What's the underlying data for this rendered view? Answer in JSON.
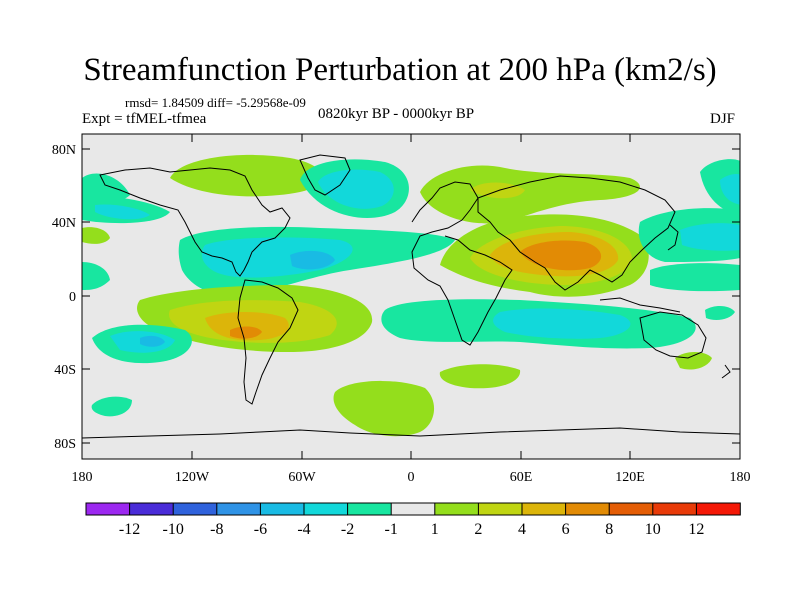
{
  "figure": {
    "title": "Streamfunction Perturbation at 200 hPa (km2/s)",
    "stats": "rmsd= 1.84509 diff= -5.29568e-09",
    "experiment": "Expt = tfMEL-tfmea",
    "period": "0820kyr BP - 0000kyr BP",
    "season": "DJF"
  },
  "axes": {
    "lat_labels": [
      "80N",
      "40N",
      "0",
      "40S",
      "80S"
    ],
    "lon_labels": [
      "180",
      "120W",
      "60W",
      "0",
      "60E",
      "120E",
      "180"
    ]
  },
  "colorbar": {
    "labels": [
      "-12",
      "-10",
      "-8",
      "-6",
      "-4",
      "-2",
      "-1",
      "1",
      "2",
      "4",
      "6",
      "8",
      "10",
      "12"
    ],
    "colors": [
      "#9c28f0",
      "#4a2cd8",
      "#2f62dc",
      "#2f93e6",
      "#19bbe4",
      "#12d8da",
      "#18e6a0",
      "#e8e8e8",
      "#94de1c",
      "#c0d512",
      "#dcb50a",
      "#e28b05",
      "#e45d05",
      "#e83a08",
      "#f41806"
    ]
  },
  "colors": {
    "map_background": "#e8e8e8",
    "coastline": "#000000"
  }
}
